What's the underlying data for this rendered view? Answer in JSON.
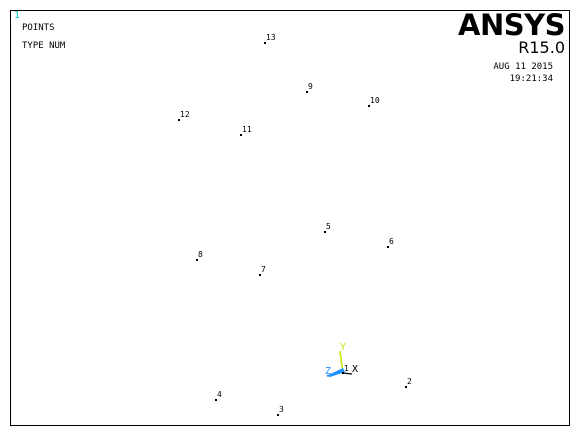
{
  "window": {
    "number": "1",
    "number_color": "#00c8c8"
  },
  "legend": {
    "line1": "POINTS",
    "line2": "TYPE NUM"
  },
  "branding": {
    "logo": "ANSYS",
    "release": "R15.0"
  },
  "timestamp": {
    "date": "AUG 11 2015",
    "time": "19:21:34"
  },
  "keypoints": [
    {
      "id": "2",
      "label": "2"
    },
    {
      "id": "3",
      "label": "3"
    },
    {
      "id": "4",
      "label": "4"
    },
    {
      "id": "5",
      "label": "5"
    },
    {
      "id": "6",
      "label": "6"
    },
    {
      "id": "7",
      "label": "7"
    },
    {
      "id": "8",
      "label": "8"
    },
    {
      "id": "9",
      "label": "9"
    },
    {
      "id": "10",
      "label": "10"
    },
    {
      "id": "11",
      "label": "11"
    },
    {
      "id": "12",
      "label": "12"
    },
    {
      "id": "13",
      "label": "13"
    }
  ],
  "origin_keypoint": {
    "label": "1"
  },
  "triad": {
    "x_label": "X",
    "y_label": "Y",
    "z_label": "Z",
    "x_color": "#000000",
    "y_color": "#c8e600",
    "z_color": "#1e90ff"
  }
}
